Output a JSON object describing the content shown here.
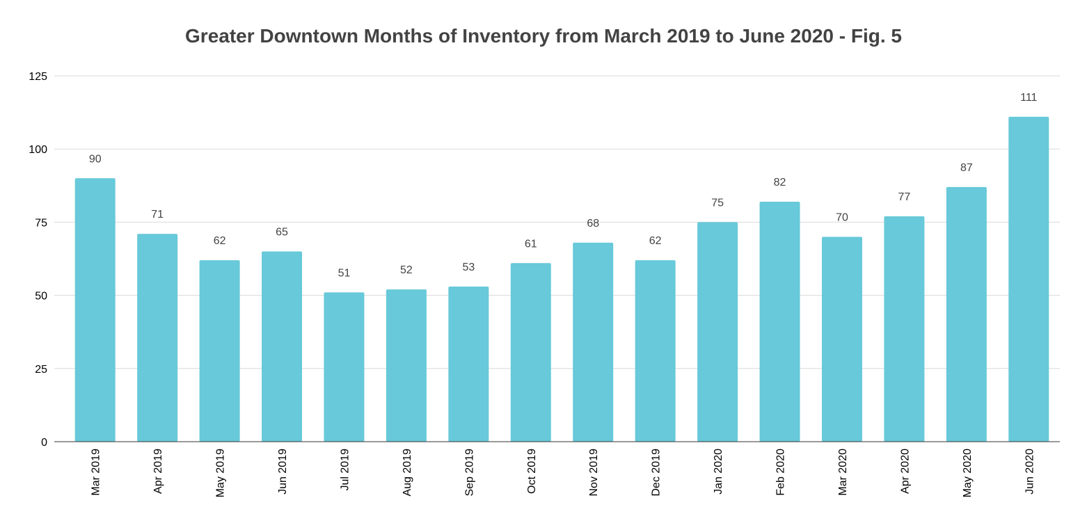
{
  "chart_data": {
    "type": "bar",
    "title": "Greater Downtown Months of Inventory from March 2019 to June 2020 - Fig. 5",
    "xlabel": "",
    "ylabel": "",
    "ylim": [
      0,
      125
    ],
    "yticks": [
      0,
      25,
      50,
      75,
      100,
      125
    ],
    "grid": true,
    "legend": "none",
    "color": "#67c9d9",
    "categories": [
      "Mar 2019",
      "Apr 2019",
      "May 2019",
      "Jun 2019",
      "Jul 2019",
      "Aug 2019",
      "Sep 2019",
      "Oct 2019",
      "Nov 2019",
      "Dec 2019",
      "Jan 2020",
      "Feb 2020",
      "Mar 2020",
      "Apr 2020",
      "May 2020",
      "Jun 2020"
    ],
    "values": [
      90,
      71,
      62,
      65,
      51,
      52,
      53,
      61,
      68,
      62,
      75,
      82,
      70,
      77,
      87,
      111
    ]
  }
}
